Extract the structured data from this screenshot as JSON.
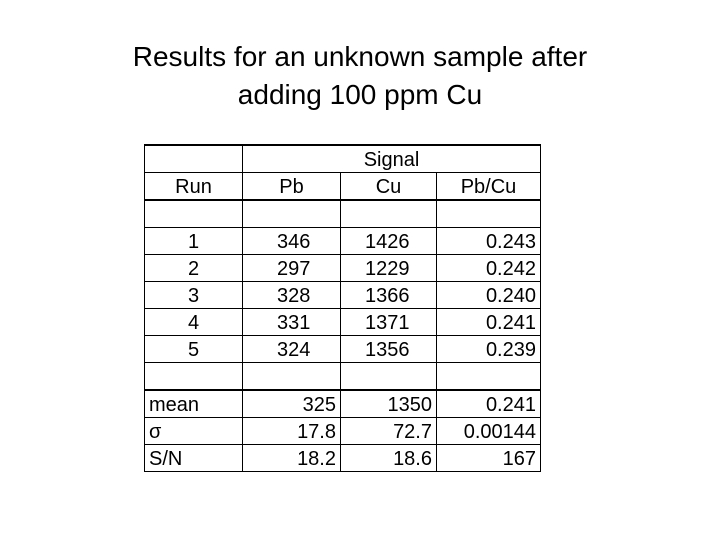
{
  "slide": {
    "title_line1": "Results for an unknown sample after",
    "title_line2": "adding 100 ppm Cu"
  },
  "table": {
    "group_header": "Signal",
    "headers": {
      "run": "Run",
      "pb": "Pb",
      "cu": "Cu",
      "ratio": "Pb/Cu"
    },
    "rows": [
      {
        "run": "1",
        "pb": "346",
        "cu": "1426",
        "ratio": "0.243"
      },
      {
        "run": "2",
        "pb": "297",
        "cu": "1229",
        "ratio": "0.242"
      },
      {
        "run": "3",
        "pb": "328",
        "cu": "1366",
        "ratio": "0.240"
      },
      {
        "run": "4",
        "pb": "331",
        "cu": "1371",
        "ratio": "0.241"
      },
      {
        "run": "5",
        "pb": "324",
        "cu": "1356",
        "ratio": "0.239"
      }
    ],
    "stats": [
      {
        "label": "mean",
        "pb": "325",
        "cu": "1350",
        "ratio": "0.241"
      },
      {
        "label": "σ",
        "pb": "17.8",
        "cu": "72.7",
        "ratio": "0.00144"
      },
      {
        "label": "S/N",
        "pb": "18.2",
        "cu": "18.6",
        "ratio": "167"
      }
    ]
  }
}
